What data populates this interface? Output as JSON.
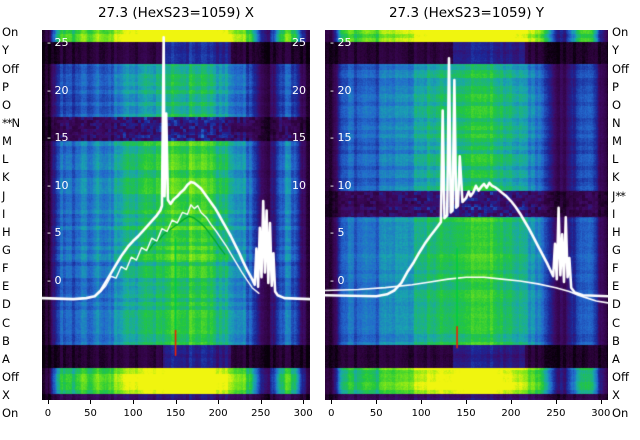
{
  "channel_labels": {
    "left": [
      "On",
      "Y",
      "Off",
      "P",
      "O",
      "N",
      "M",
      "L",
      "K",
      "J",
      "I",
      "H",
      "G",
      "F",
      "E",
      "D",
      "C",
      "B",
      "A",
      "Off",
      "X",
      "On"
    ],
    "right": [
      "On",
      "Y",
      "Off",
      "P",
      "O",
      "N",
      "M",
      "L",
      "K",
      "J",
      "I",
      "H",
      "G",
      "F",
      "E",
      "D",
      "C",
      "B",
      "A",
      "Off",
      "X",
      "On"
    ],
    "left_selected": {
      "index": 5,
      "label": "N",
      "marker": "**",
      "marker_position": "before"
    },
    "right_selected": {
      "index": 9,
      "label": "J",
      "marker": "**",
      "marker_position": "after"
    }
  },
  "axis": {
    "x_ticks": [
      0,
      50,
      100,
      150,
      200,
      250,
      300
    ],
    "y_ticks": [
      25,
      20,
      15,
      10,
      5,
      0
    ],
    "y_tick_prefix": "- "
  },
  "chart_data": [
    {
      "type": "heatmap",
      "title": "27.3 (HexS23=1059) X",
      "axis_name": "X",
      "xlim": [
        -7,
        308
      ],
      "ylim": [
        -12.5,
        26.4
      ],
      "x_ticks": [
        0,
        50,
        100,
        150,
        200,
        250,
        300
      ],
      "y_ticks": [
        25,
        20,
        15,
        10,
        5,
        0
      ],
      "right_edge_ticks": [
        25,
        20,
        15,
        10
      ],
      "heatmap": {
        "x_start": -10,
        "x_step": 10,
        "column_intensity": [
          0.04,
          0.08,
          0.42,
          0.5,
          0.46,
          0.55,
          0.48,
          0.56,
          0.5,
          0.58,
          0.62,
          0.68,
          0.66,
          0.73,
          0.7,
          0.76,
          0.79,
          0.74,
          0.8,
          0.77,
          0.73,
          0.69,
          0.64,
          0.57,
          0.54,
          0.44,
          0.2,
          0.17,
          0.38,
          0.52,
          0.46,
          0.18,
          0.05
        ],
        "bands": [
          {
            "from": 0.0,
            "to": 0.03,
            "boost": 1.6
          },
          {
            "from": 0.03,
            "to": 0.09,
            "boost": 0.17,
            "window_boost": [
              135,
              215,
              2.6
            ]
          },
          {
            "from": 0.09,
            "to": 0.235,
            "boost": 0.88
          },
          {
            "from": 0.235,
            "to": 0.3,
            "boost": 0.5,
            "mottled": true
          },
          {
            "from": 0.3,
            "to": 0.62,
            "boost": 1.02
          },
          {
            "from": 0.62,
            "to": 0.85,
            "boost": 0.96
          },
          {
            "from": 0.85,
            "to": 0.913,
            "boost": 0.16,
            "window_boost": [
              135,
              215,
              2.6
            ]
          },
          {
            "from": 0.913,
            "to": 0.983,
            "boost": 1.5
          },
          {
            "from": 0.983,
            "to": 1.0,
            "boost": 0.35
          }
        ]
      },
      "series": [
        {
          "name": "reference-profile-green",
          "color": "#00a82e",
          "width": 1.3,
          "points": [
            [
              118,
              3.2
            ],
            [
              124,
              3.9
            ],
            [
              130,
              4.3
            ],
            [
              136,
              4.9
            ],
            [
              142,
              5.3
            ],
            [
              148,
              5.7
            ],
            [
              154,
              6.1
            ],
            [
              160,
              6.5
            ],
            [
              166,
              6.8
            ],
            [
              172,
              6.6
            ],
            [
              178,
              6.2
            ],
            [
              184,
              5.7
            ],
            [
              190,
              5.0
            ],
            [
              196,
              4.3
            ],
            [
              202,
              3.5
            ],
            [
              208,
              2.8
            ]
          ]
        },
        {
          "name": "beam-profile-secondary",
          "color": "#ffffff",
          "width": 1.4,
          "points": [
            [
              55,
              -1.6
            ],
            [
              62,
              -1.1
            ],
            [
              68,
              -0.5
            ],
            [
              74,
              0.5
            ],
            [
              80,
              0.3
            ],
            [
              86,
              1.5
            ],
            [
              92,
              1.2
            ],
            [
              98,
              2.5
            ],
            [
              104,
              2.2
            ],
            [
              110,
              3.5
            ],
            [
              116,
              3.2
            ],
            [
              122,
              4.5
            ],
            [
              128,
              4.2
            ],
            [
              134,
              5.5
            ],
            [
              140,
              5.2
            ],
            [
              146,
              6.4
            ],
            [
              152,
              6.1
            ],
            [
              158,
              7.2
            ],
            [
              164,
              7.0
            ],
            [
              168,
              8.0
            ],
            [
              172,
              7.6
            ],
            [
              176,
              7.9
            ],
            [
              180,
              7.2
            ],
            [
              186,
              6.7
            ],
            [
              192,
              5.9
            ],
            [
              198,
              5.2
            ],
            [
              204,
              4.4
            ],
            [
              210,
              3.6
            ],
            [
              216,
              2.7
            ],
            [
              222,
              1.8
            ],
            [
              228,
              0.9
            ],
            [
              234,
              0.1
            ],
            [
              240,
              -0.7
            ],
            [
              248,
              -1.3
            ]
          ]
        },
        {
          "name": "beam-profile-main",
          "color": "#ffffff",
          "width": 2.6,
          "points": [
            [
              -7,
              -1.8
            ],
            [
              30,
              -1.9
            ],
            [
              45,
              -1.8
            ],
            [
              55,
              -1.6
            ],
            [
              62,
              -1.0
            ],
            [
              70,
              0.2
            ],
            [
              78,
              1.4
            ],
            [
              86,
              2.6
            ],
            [
              94,
              3.6
            ],
            [
              100,
              4.2
            ],
            [
              106,
              4.7
            ],
            [
              112,
              5.3
            ],
            [
              118,
              5.9
            ],
            [
              124,
              6.5
            ],
            [
              128,
              6.9
            ],
            [
              132,
              7.4
            ],
            [
              134,
              7.9
            ],
            [
              136,
              25.6
            ],
            [
              137,
              8.9
            ],
            [
              139,
              17.6
            ],
            [
              141,
              8.5
            ],
            [
              144,
              8.1
            ],
            [
              148,
              8.6
            ],
            [
              152,
              8.9
            ],
            [
              156,
              9.3
            ],
            [
              160,
              9.6
            ],
            [
              164,
              10.1
            ],
            [
              168,
              10.4
            ],
            [
              172,
              10.3
            ],
            [
              176,
              10.0
            ],
            [
              180,
              9.7
            ],
            [
              184,
              9.2
            ],
            [
              188,
              8.7
            ],
            [
              192,
              8.2
            ],
            [
              196,
              7.7
            ],
            [
              200,
              7.1
            ],
            [
              205,
              6.3
            ],
            [
              210,
              5.5
            ],
            [
              215,
              4.7
            ],
            [
              220,
              3.8
            ],
            [
              225,
              2.9
            ],
            [
              230,
              1.9
            ],
            [
              235,
              1.0
            ],
            [
              240,
              0.2
            ],
            [
              243,
              -0.4
            ],
            [
              245,
              3.4
            ],
            [
              247,
              -0.6
            ],
            [
              249,
              5.6
            ],
            [
              251,
              0.4
            ],
            [
              253,
              8.4
            ],
            [
              255,
              0.9
            ],
            [
              257,
              7.4
            ],
            [
              259,
              -0.2
            ],
            [
              261,
              6.1
            ],
            [
              263,
              -0.5
            ],
            [
              265,
              2.9
            ],
            [
              267,
              -1.1
            ],
            [
              270,
              -1.5
            ],
            [
              278,
              -1.8
            ],
            [
              308,
              -1.9
            ]
          ]
        }
      ],
      "markers": [
        {
          "name": "cursor-line-green",
          "color": "#00cc44",
          "x": 150,
          "y1": 4.4,
          "y2": -5.2
        },
        {
          "name": "cursor-line-red",
          "color": "#ee2200",
          "x": 150,
          "y1": -5.2,
          "y2": -7.8
        }
      ]
    },
    {
      "type": "heatmap",
      "title": "27.3 (HexS23=1059) Y",
      "axis_name": "Y",
      "xlim": [
        -7,
        308
      ],
      "ylim": [
        -12.5,
        26.4
      ],
      "x_ticks": [
        0,
        50,
        100,
        150,
        200,
        250,
        300
      ],
      "y_ticks": [
        25,
        20,
        15,
        10,
        5,
        0
      ],
      "right_edge_ticks": [],
      "heatmap": {
        "x_start": -10,
        "x_step": 10,
        "column_intensity": [
          0.04,
          0.07,
          0.4,
          0.48,
          0.44,
          0.53,
          0.47,
          0.55,
          0.52,
          0.57,
          0.6,
          0.66,
          0.68,
          0.71,
          0.69,
          0.74,
          0.78,
          0.75,
          0.79,
          0.76,
          0.72,
          0.68,
          0.63,
          0.56,
          0.53,
          0.43,
          0.21,
          0.16,
          0.37,
          0.5,
          0.44,
          0.17,
          0.05
        ],
        "bands": [
          {
            "from": 0.0,
            "to": 0.03,
            "boost": 1.6
          },
          {
            "from": 0.03,
            "to": 0.09,
            "boost": 0.17,
            "window_boost": [
              135,
              215,
              2.6
            ]
          },
          {
            "from": 0.09,
            "to": 0.435,
            "boost": 0.94
          },
          {
            "from": 0.435,
            "to": 0.505,
            "boost": 0.48,
            "mottled": true
          },
          {
            "from": 0.505,
            "to": 0.85,
            "boost": 1.0
          },
          {
            "from": 0.85,
            "to": 0.913,
            "boost": 0.16,
            "window_boost": [
              135,
              215,
              2.6
            ]
          },
          {
            "from": 0.913,
            "to": 0.983,
            "boost": 1.5
          },
          {
            "from": 0.983,
            "to": 1.0,
            "boost": 0.35
          }
        ]
      },
      "series": [
        {
          "name": "beam-profile-secondary",
          "color": "#ffffff",
          "width": 1.6,
          "points": [
            [
              -7,
              -1.0
            ],
            [
              30,
              -0.9
            ],
            [
              60,
              -0.7
            ],
            [
              90,
              -0.4
            ],
            [
              110,
              -0.1
            ],
            [
              130,
              0.2
            ],
            [
              150,
              0.4
            ],
            [
              170,
              0.4
            ],
            [
              190,
              0.2
            ],
            [
              210,
              0.0
            ],
            [
              230,
              -0.3
            ],
            [
              250,
              -0.7
            ],
            [
              265,
              -1.1
            ],
            [
              275,
              -1.5
            ],
            [
              285,
              -1.8
            ],
            [
              295,
              -2.1
            ],
            [
              308,
              -2.3
            ]
          ]
        },
        {
          "name": "beam-profile-main",
          "color": "#ffffff",
          "width": 2.6,
          "points": [
            [
              -7,
              -1.5
            ],
            [
              50,
              -1.6
            ],
            [
              62,
              -1.4
            ],
            [
              70,
              -1.0
            ],
            [
              78,
              -0.2
            ],
            [
              85,
              1.0
            ],
            [
              92,
              2.0
            ],
            [
              98,
              3.0
            ],
            [
              104,
              3.9
            ],
            [
              110,
              4.7
            ],
            [
              115,
              5.3
            ],
            [
              119,
              5.8
            ],
            [
              122,
              6.2
            ],
            [
              124,
              17.9
            ],
            [
              126,
              6.6
            ],
            [
              129,
              6.9
            ],
            [
              131,
              23.4
            ],
            [
              133,
              7.2
            ],
            [
              135,
              7.4
            ],
            [
              137,
              21.1
            ],
            [
              139,
              7.7
            ],
            [
              141,
              7.9
            ],
            [
              143,
              13.1
            ],
            [
              146,
              8.3
            ],
            [
              150,
              8.7
            ],
            [
              153,
              9.4
            ],
            [
              155,
              8.9
            ],
            [
              158,
              9.3
            ],
            [
              161,
              10.0
            ],
            [
              164,
              9.5
            ],
            [
              167,
              9.9
            ],
            [
              170,
              10.2
            ],
            [
              173,
              9.8
            ],
            [
              176,
              10.3
            ],
            [
              179,
              10.0
            ],
            [
              183,
              9.8
            ],
            [
              187,
              9.5
            ],
            [
              191,
              9.2
            ],
            [
              195,
              8.9
            ],
            [
              200,
              8.4
            ],
            [
              205,
              7.8
            ],
            [
              210,
              7.1
            ],
            [
              215,
              6.3
            ],
            [
              220,
              5.5
            ],
            [
              225,
              4.6
            ],
            [
              230,
              3.7
            ],
            [
              235,
              2.8
            ],
            [
              240,
              1.9
            ],
            [
              244,
              1.1
            ],
            [
              247,
              0.5
            ],
            [
              249,
              3.9
            ],
            [
              251,
              0.2
            ],
            [
              253,
              7.7
            ],
            [
              255,
              0.6
            ],
            [
              257,
              4.9
            ],
            [
              259,
              -0.1
            ],
            [
              261,
              6.7
            ],
            [
              263,
              0.4
            ],
            [
              265,
              2.4
            ],
            [
              267,
              -0.7
            ],
            [
              271,
              -1.2
            ],
            [
              280,
              -1.5
            ],
            [
              308,
              -1.6
            ]
          ]
        }
      ],
      "markers": [
        {
          "name": "cursor-line-green",
          "color": "#00cc44",
          "x": 140,
          "y1": 3.4,
          "y2": -4.8
        },
        {
          "name": "cursor-line-red",
          "color": "#ee2200",
          "x": 140,
          "y1": -4.8,
          "y2": -7.0
        }
      ]
    }
  ]
}
